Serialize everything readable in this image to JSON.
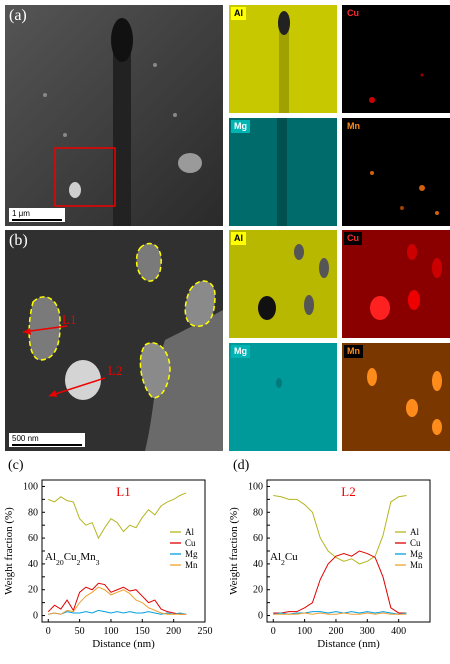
{
  "panel_a": {
    "label": "(a)",
    "scalebar": "1 μm",
    "maps": [
      {
        "element": "Al",
        "bg": "#ffff00",
        "fg": "#000"
      },
      {
        "element": "Cu",
        "bg": "#000000",
        "fg": "#ff2a2a"
      },
      {
        "element": "Mg",
        "bg": "#00b4b4",
        "fg": "#fff"
      },
      {
        "element": "Mn",
        "bg": "#000000",
        "fg": "#ff8c1a"
      }
    ]
  },
  "panel_b": {
    "label": "(b)",
    "scalebar": "500 nm",
    "line1": "L1",
    "line2": "L2",
    "maps": [
      {
        "element": "Al",
        "bg": "#ffff00",
        "fg": "#000"
      },
      {
        "element": "Cu",
        "bg": "#000000",
        "fg": "#ff2a2a"
      },
      {
        "element": "Mg",
        "bg": "#00b4b4",
        "fg": "#fff"
      },
      {
        "element": "Mn",
        "bg": "#000000",
        "fg": "#ff8c1a"
      }
    ]
  },
  "chart_data": [
    {
      "type": "line",
      "panel_label": "(c)",
      "line_label": "L1",
      "annotation": "Al20Cu2Mn3",
      "xlabel": "Distance (nm)",
      "ylabel": "Weight fraction (%)",
      "xlim": [
        -10,
        250
      ],
      "ylim": [
        -5,
        105
      ],
      "xticks": [
        0,
        50,
        100,
        150,
        200,
        250
      ],
      "yticks": [
        0,
        10,
        20,
        30,
        40,
        50,
        60,
        70,
        80,
        90,
        100
      ],
      "legend": "right",
      "series": [
        {
          "name": "Al",
          "color": "#b5b520",
          "x": [
            0,
            10,
            20,
            30,
            40,
            50,
            60,
            70,
            80,
            90,
            100,
            110,
            120,
            130,
            140,
            150,
            160,
            170,
            180,
            190,
            200,
            210,
            220
          ],
          "y": [
            90,
            88,
            92,
            89,
            88,
            75,
            70,
            72,
            60,
            68,
            75,
            72,
            65,
            70,
            68,
            76,
            82,
            78,
            85,
            88,
            90,
            93,
            95
          ]
        },
        {
          "name": "Cu",
          "color": "#e00000",
          "x": [
            0,
            10,
            20,
            30,
            40,
            50,
            60,
            70,
            80,
            90,
            100,
            110,
            120,
            130,
            140,
            150,
            160,
            170,
            180,
            190,
            200,
            210,
            220
          ],
          "y": [
            3,
            8,
            5,
            12,
            4,
            18,
            22,
            20,
            25,
            24,
            18,
            20,
            22,
            19,
            20,
            15,
            10,
            12,
            5,
            3,
            2,
            1,
            1
          ]
        },
        {
          "name": "Mg",
          "color": "#00a0e0",
          "x": [
            0,
            10,
            20,
            30,
            40,
            50,
            60,
            70,
            80,
            90,
            100,
            110,
            120,
            130,
            140,
            150,
            160,
            170,
            180,
            190,
            200,
            210,
            220
          ],
          "y": [
            1,
            2,
            1,
            3,
            2,
            2,
            3,
            2,
            4,
            3,
            2,
            3,
            2,
            3,
            2,
            2,
            3,
            2,
            1,
            2,
            1,
            2,
            1
          ]
        },
        {
          "name": "Mn",
          "color": "#f0a030",
          "x": [
            0,
            10,
            20,
            30,
            40,
            50,
            60,
            70,
            80,
            90,
            100,
            110,
            120,
            130,
            140,
            150,
            160,
            170,
            180,
            190,
            200,
            210,
            220
          ],
          "y": [
            1,
            2,
            1,
            4,
            3,
            10,
            15,
            18,
            22,
            20,
            16,
            18,
            20,
            17,
            12,
            10,
            6,
            4,
            2,
            1,
            1,
            1,
            1
          ]
        }
      ]
    },
    {
      "type": "line",
      "panel_label": "(d)",
      "line_label": "L2",
      "annotation": "Al2Cu",
      "xlabel": "Distance (nm)",
      "ylabel": "Weight fraction (%)",
      "xlim": [
        -20,
        500
      ],
      "ylim": [
        -5,
        105
      ],
      "xticks": [
        0,
        100,
        200,
        300,
        400
      ],
      "yticks": [
        0,
        10,
        20,
        30,
        40,
        50,
        60,
        70,
        80,
        90,
        100
      ],
      "legend": "right",
      "series": [
        {
          "name": "Al",
          "color": "#b5b520",
          "x": [
            0,
            25,
            50,
            75,
            100,
            125,
            150,
            175,
            200,
            225,
            250,
            275,
            300,
            325,
            350,
            375,
            400,
            425
          ],
          "y": [
            93,
            92,
            90,
            90,
            86,
            80,
            60,
            50,
            45,
            42,
            44,
            40,
            42,
            46,
            62,
            88,
            92,
            93
          ]
        },
        {
          "name": "Cu",
          "color": "#e00000",
          "x": [
            0,
            25,
            50,
            75,
            100,
            125,
            150,
            175,
            200,
            225,
            250,
            275,
            300,
            325,
            350,
            375,
            400,
            425
          ],
          "y": [
            2,
            2,
            3,
            3,
            6,
            10,
            28,
            40,
            46,
            48,
            46,
            50,
            48,
            45,
            30,
            6,
            2,
            2
          ]
        },
        {
          "name": "Mg",
          "color": "#00a0e0",
          "x": [
            0,
            25,
            50,
            75,
            100,
            125,
            150,
            175,
            200,
            225,
            250,
            275,
            300,
            325,
            350,
            375,
            400,
            425
          ],
          "y": [
            1,
            2,
            1,
            2,
            2,
            3,
            3,
            2,
            3,
            2,
            3,
            2,
            3,
            2,
            3,
            2,
            1,
            2
          ]
        },
        {
          "name": "Mn",
          "color": "#f0a030",
          "x": [
            0,
            25,
            50,
            75,
            100,
            125,
            150,
            175,
            200,
            225,
            250,
            275,
            300,
            325,
            350,
            375,
            400,
            425
          ],
          "y": [
            1,
            1,
            1,
            1,
            2,
            1,
            2,
            1,
            1,
            2,
            1,
            1,
            2,
            1,
            2,
            1,
            1,
            1
          ]
        }
      ]
    }
  ]
}
